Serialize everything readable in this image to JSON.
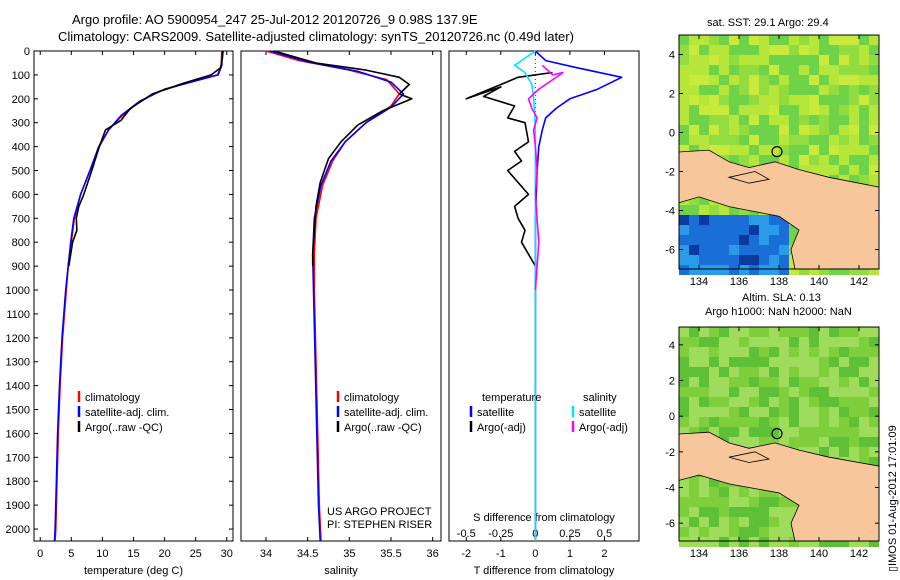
{
  "title": {
    "line1": "Argo profile: AO 5900954_247 25-Jul-2012 20120726_9 0.98S 137.9E",
    "line2": "Climatology: CARS2009. Satellite-adjusted climatology: synTS_20120726.nc (0.49d later)"
  },
  "map_top_title": "sat. SST: 29.1  Argo: 29.4",
  "map_bottom_title1": "Altim. SLA: 0.13",
  "map_bottom_title2": "Argo h1000: NaN h2000: NaN",
  "timestamp": "▯IMOS 01-Aug-2012 17:01:09",
  "project_line1": "US ARGO PROJECT",
  "project_line2": "PI: STEPHEN RISER",
  "colors": {
    "climatology": "#ff0000",
    "satellite": "#0000ff",
    "argo": "#000000",
    "sat_salinity": "#00e5ff",
    "argo_salinity": "#ff00ff",
    "land": "#f7c69a"
  },
  "chart_data": [
    {
      "type": "line",
      "name": "temperature",
      "xlabel": "temperature (deg C)",
      "ylabel": "",
      "xlim": [
        -1,
        31
      ],
      "ylim": [
        2050,
        0
      ],
      "xticks": [
        0,
        5,
        10,
        15,
        20,
        25,
        30
      ],
      "yticks": [
        0,
        100,
        200,
        300,
        400,
        500,
        600,
        700,
        800,
        900,
        1000,
        1100,
        1200,
        1300,
        1400,
        1500,
        1600,
        1700,
        1800,
        1900,
        2000
      ],
      "legend": [
        "climatology",
        "satellite-adj. clim.",
        "Argo(..raw -QC)"
      ],
      "legend_position": "lower-middle",
      "series": [
        {
          "name": "climatology",
          "color": "#ff0000",
          "points": [
            [
              29.2,
              0
            ],
            [
              29.1,
              60
            ],
            [
              28.5,
              100
            ],
            [
              24,
              130
            ],
            [
              19,
              170
            ],
            [
              15.5,
              220
            ],
            [
              12.8,
              280
            ],
            [
              11,
              330
            ],
            [
              9.5,
              400
            ],
            [
              8,
              500
            ],
            [
              6.5,
              600
            ],
            [
              5.5,
              700
            ],
            [
              5,
              800
            ],
            [
              4.5,
              900
            ],
            [
              4.2,
              1000
            ],
            [
              3.6,
              1200
            ],
            [
              3.2,
              1400
            ],
            [
              2.9,
              1600
            ],
            [
              2.7,
              1800
            ],
            [
              2.5,
              2000
            ],
            [
              2.4,
              2050
            ]
          ]
        },
        {
          "name": "satellite",
          "color": "#0000ff",
          "points": [
            [
              29.3,
              0
            ],
            [
              29.2,
              60
            ],
            [
              28.6,
              100
            ],
            [
              25,
              125
            ],
            [
              20,
              160
            ],
            [
              16,
              210
            ],
            [
              13,
              270
            ],
            [
              11,
              330
            ],
            [
              9.4,
              400
            ],
            [
              8,
              500
            ],
            [
              6.5,
              600
            ],
            [
              5.4,
              700
            ],
            [
              4.9,
              800
            ],
            [
              4.5,
              900
            ],
            [
              4.1,
              1000
            ],
            [
              3.5,
              1200
            ],
            [
              3.1,
              1400
            ],
            [
              2.8,
              1600
            ],
            [
              2.6,
              1800
            ],
            [
              2.4,
              2000
            ],
            [
              2.3,
              2050
            ]
          ]
        },
        {
          "name": "argo",
          "color": "#000000",
          "points": [
            [
              29.4,
              0
            ],
            [
              29.3,
              30
            ],
            [
              29.0,
              70
            ],
            [
              27.5,
              100
            ],
            [
              23,
              135
            ],
            [
              18,
              180
            ],
            [
              14.5,
              240
            ],
            [
              13,
              290
            ],
            [
              10.5,
              330
            ],
            [
              9.5,
              400
            ],
            [
              8.3,
              500
            ],
            [
              7,
              600
            ],
            [
              6.2,
              650
            ],
            [
              5.8,
              700
            ],
            [
              5.9,
              750
            ],
            [
              5.2,
              800
            ],
            [
              4.9,
              850
            ],
            [
              4.6,
              900
            ]
          ]
        }
      ]
    },
    {
      "type": "line",
      "name": "salinity",
      "xlabel": "salinity",
      "xlim": [
        33.7,
        36.1
      ],
      "ylim": [
        2050,
        0
      ],
      "xticks": [
        34,
        34.5,
        35,
        35.5,
        36
      ],
      "legend": [
        "climatology",
        "satellite-adj. clim.",
        "Argo(..raw -QC)"
      ],
      "legend_position": "lower-middle",
      "series": [
        {
          "name": "climatology",
          "color": "#ff0000",
          "points": [
            [
              34.0,
              0
            ],
            [
              34.4,
              40
            ],
            [
              35.0,
              80
            ],
            [
              35.45,
              120
            ],
            [
              35.6,
              180
            ],
            [
              35.5,
              230
            ],
            [
              35.2,
              300
            ],
            [
              34.95,
              380
            ],
            [
              34.8,
              460
            ],
            [
              34.68,
              560
            ],
            [
              34.6,
              700
            ],
            [
              34.58,
              850
            ],
            [
              34.58,
              1000
            ],
            [
              34.6,
              1300
            ],
            [
              34.62,
              1600
            ],
            [
              34.64,
              1900
            ],
            [
              34.66,
              2050
            ]
          ]
        },
        {
          "name": "satellite",
          "color": "#0000ff",
          "points": [
            [
              34.05,
              0
            ],
            [
              34.5,
              45
            ],
            [
              35.1,
              85
            ],
            [
              35.5,
              130
            ],
            [
              35.65,
              180
            ],
            [
              35.5,
              235
            ],
            [
              35.2,
              300
            ],
            [
              34.95,
              380
            ],
            [
              34.78,
              460
            ],
            [
              34.66,
              560
            ],
            [
              34.58,
              700
            ],
            [
              34.56,
              850
            ],
            [
              34.57,
              1000
            ],
            [
              34.59,
              1300
            ],
            [
              34.61,
              1600
            ],
            [
              34.63,
              1900
            ],
            [
              34.65,
              2050
            ]
          ]
        },
        {
          "name": "argo",
          "color": "#000000",
          "points": [
            [
              34.1,
              0
            ],
            [
              34.6,
              50
            ],
            [
              35.2,
              80
            ],
            [
              35.6,
              110
            ],
            [
              35.72,
              140
            ],
            [
              35.6,
              180
            ],
            [
              35.75,
              200
            ],
            [
              35.4,
              250
            ],
            [
              35.1,
              310
            ],
            [
              34.9,
              380
            ],
            [
              34.75,
              450
            ],
            [
              34.65,
              550
            ],
            [
              34.6,
              650
            ],
            [
              34.58,
              750
            ],
            [
              34.56,
              850
            ],
            [
              34.56,
              900
            ]
          ]
        }
      ]
    },
    {
      "type": "line",
      "name": "difference",
      "xlabel": "T difference from climatology",
      "xlabel_top": "S difference from climatology",
      "xlim": [
        -2.5,
        3.0
      ],
      "ylim": [
        2050,
        0
      ],
      "xticks": [
        -2,
        -1,
        0,
        1,
        2
      ],
      "sticks": [
        -0.5,
        -0.25,
        0,
        0.25,
        0.5
      ],
      "legend_headers": [
        "temperature",
        "salinity"
      ],
      "legend": [
        "satellite",
        "Argo(-adj)",
        "satellite",
        "Argo(-adj)"
      ],
      "series": [
        {
          "name": "temperature satellite",
          "color": "#0000ff",
          "points": [
            [
              0,
              0
            ],
            [
              0.3,
              40
            ],
            [
              1.2,
              70
            ],
            [
              2.5,
              110
            ],
            [
              1.8,
              160
            ],
            [
              1.0,
              200
            ],
            [
              0.6,
              240
            ],
            [
              0.3,
              280
            ],
            [
              0.2,
              330
            ],
            [
              0.1,
              400
            ],
            [
              0.05,
              500
            ],
            [
              0,
              700
            ],
            [
              0,
              1000
            ],
            [
              0,
              1500
            ],
            [
              0,
              2050
            ]
          ]
        },
        {
          "name": "temperature argo",
          "color": "#000000",
          "points": [
            [
              0.5,
              90
            ],
            [
              -0.5,
              110
            ],
            [
              -2.0,
              200
            ],
            [
              -1.0,
              150
            ],
            [
              -1.5,
              190
            ],
            [
              -0.6,
              230
            ],
            [
              -0.8,
              280
            ],
            [
              -0.3,
              300
            ],
            [
              -0.2,
              380
            ],
            [
              -0.6,
              420
            ],
            [
              -0.4,
              460
            ],
            [
              -0.8,
              500
            ],
            [
              -0.5,
              550
            ],
            [
              -0.2,
              600
            ],
            [
              -0.6,
              650
            ],
            [
              -0.5,
              700
            ],
            [
              -0.3,
              750
            ],
            [
              -0.4,
              800
            ],
            [
              -0.2,
              850
            ],
            [
              0,
              900
            ]
          ]
        },
        {
          "name": "salinity satellite",
          "color": "#00e5ff",
          "points": [
            [
              0,
              0
            ],
            [
              -0.6,
              60
            ],
            [
              -0.3,
              90
            ],
            [
              -0.1,
              140
            ],
            [
              -0.05,
              200
            ],
            [
              -0.02,
              260
            ],
            [
              0,
              340
            ],
            [
              0,
              500
            ],
            [
              0,
              1000
            ],
            [
              0,
              1500
            ],
            [
              0,
              2050
            ]
          ]
        },
        {
          "name": "salinity argo",
          "color": "#ff00ff",
          "points": [
            [
              0.2,
              60
            ],
            [
              0.5,
              100
            ],
            [
              0.8,
              90
            ],
            [
              0.4,
              130
            ],
            [
              0.1,
              160
            ],
            [
              -0.2,
              200
            ],
            [
              -0.1,
              240
            ],
            [
              0.05,
              280
            ],
            [
              -0.05,
              330
            ],
            [
              0,
              400
            ],
            [
              0.05,
              500
            ],
            [
              0,
              600
            ],
            [
              0.05,
              700
            ],
            [
              0.1,
              800
            ],
            [
              0.05,
              900
            ],
            [
              0,
              1000
            ]
          ]
        }
      ]
    },
    {
      "type": "heatmap",
      "name": "sst-map",
      "xticks": [
        134,
        136,
        138,
        140,
        142
      ],
      "yticks": [
        4,
        2,
        0,
        -2,
        -4,
        -6
      ],
      "xlim": [
        133,
        143
      ],
      "ylim": [
        -7,
        5
      ],
      "marker": [
        137.9,
        -0.98
      ]
    },
    {
      "type": "heatmap",
      "name": "sla-map",
      "xticks": [
        134,
        136,
        138,
        140,
        142
      ],
      "yticks": [
        4,
        2,
        0,
        -2,
        -4,
        -6
      ],
      "xlim": [
        133,
        143
      ],
      "ylim": [
        -7,
        5
      ],
      "marker": [
        137.9,
        -0.98
      ]
    }
  ]
}
